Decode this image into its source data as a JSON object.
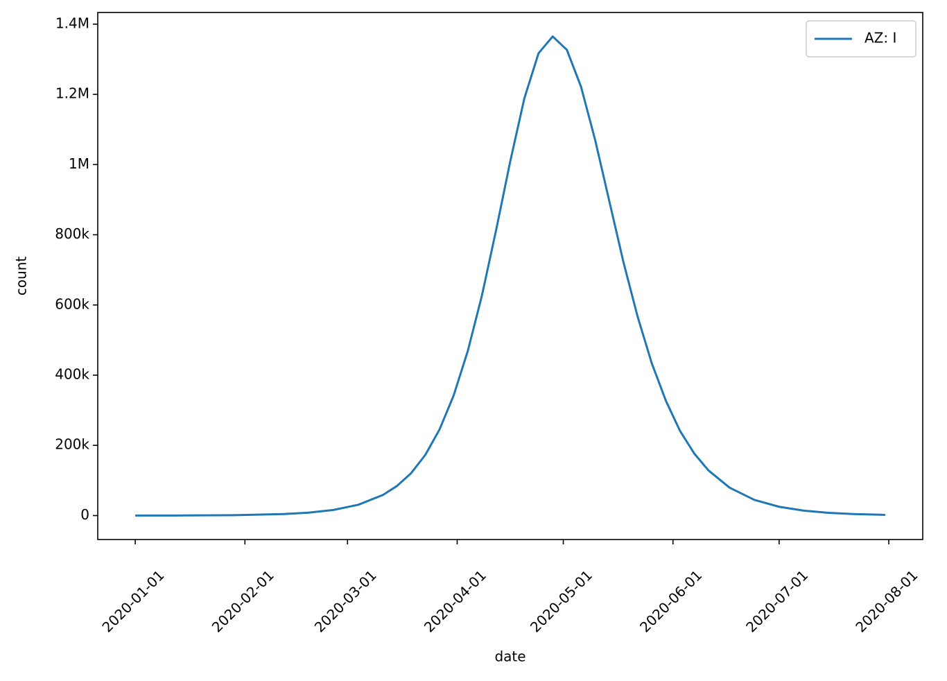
{
  "chart_data": {
    "type": "line",
    "x_label": "date",
    "y_label": "count",
    "x": [
      "2020-01-01",
      "2020-01-15",
      "2020-01-29",
      "2020-02-12",
      "2020-02-19",
      "2020-02-26",
      "2020-03-04",
      "2020-03-11",
      "2020-03-15",
      "2020-03-19",
      "2020-03-23",
      "2020-03-27",
      "2020-03-31",
      "2020-04-04",
      "2020-04-08",
      "2020-04-12",
      "2020-04-16",
      "2020-04-20",
      "2020-04-24",
      "2020-04-28",
      "2020-05-02",
      "2020-05-06",
      "2020-05-10",
      "2020-05-14",
      "2020-05-18",
      "2020-05-22",
      "2020-05-26",
      "2020-05-30",
      "2020-06-03",
      "2020-06-07",
      "2020-06-11",
      "2020-06-17",
      "2020-06-24",
      "2020-07-01",
      "2020-07-08",
      "2020-07-15",
      "2020-07-22",
      "2020-07-31"
    ],
    "series": [
      {
        "name": "AZ: I",
        "color": "#1f77b4",
        "values": [
          83,
          310,
          1158,
          4314,
          8326,
          16000,
          30700,
          58600,
          84500,
          121000,
          173000,
          245000,
          342000,
          469000,
          627000,
          813000,
          1009000,
          1189000,
          1317000,
          1365000,
          1327000,
          1222000,
          1070000,
          896000,
          722000,
          567000,
          434000,
          327000,
          241000,
          177000,
          129000,
          79500,
          44700,
          25100,
          14000,
          7800,
          4300,
          2000
        ]
      }
    ],
    "xlim": [
      "2019-12-21T09:36:00Z",
      "2020-08-10T14:24:00Z"
    ],
    "xticks": [
      "2020-01-01",
      "2020-02-01",
      "2020-03-01",
      "2020-04-01",
      "2020-05-01",
      "2020-06-01",
      "2020-07-01",
      "2020-08-01"
    ],
    "ylim": [
      -68250,
      1433250
    ],
    "yticks": [
      0,
      {
        "value": 200000,
        "label": "200k"
      },
      {
        "value": 400000,
        "label": "400k"
      },
      {
        "value": 600000,
        "label": "600k"
      },
      {
        "value": 800000,
        "label": "800k"
      },
      {
        "value": 1000000,
        "label": "1M"
      },
      {
        "value": 1200000,
        "label": "1.2M"
      },
      {
        "value": 1400000,
        "label": "1.4M"
      }
    ],
    "legend": "upper right"
  }
}
